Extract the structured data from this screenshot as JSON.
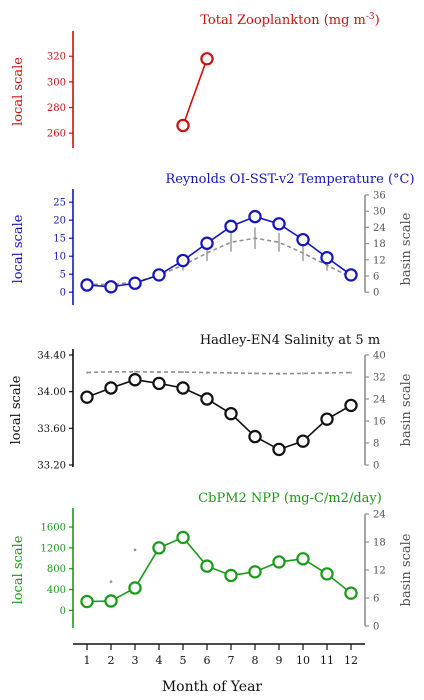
{
  "x_axis": {
    "label": "Month of Year",
    "ticks": [
      "1",
      "2",
      "3",
      "4",
      "5",
      "6",
      "7",
      "8",
      "9",
      "10",
      "11",
      "12"
    ]
  },
  "chart_data": [
    {
      "type": "line",
      "id": "zoo",
      "title": "Total Zooplankton (mg m",
      "title_sup": "-3",
      "title_end": ")",
      "color": "#cc1111",
      "ylabel": "local scale",
      "ylim": [
        250,
        335
      ],
      "yticks": [
        "260",
        "280",
        "300",
        "320"
      ],
      "yticks_v": [
        260,
        280,
        300,
        320
      ],
      "x": [
        5,
        6
      ],
      "values": [
        266,
        318
      ]
    },
    {
      "type": "line",
      "id": "sst",
      "title": "Reynolds OI-SST-v2 Temperature (°C)",
      "color": "#1515c0",
      "ylabel": "local scale",
      "ylim": [
        -3,
        27
      ],
      "yticks": [
        "0",
        "5",
        "10",
        "15",
        "20",
        "25"
      ],
      "yticks_v": [
        0,
        5,
        10,
        15,
        20,
        25
      ],
      "x": [
        1,
        2,
        3,
        4,
        5,
        6,
        7,
        8,
        9,
        10,
        11,
        12
      ],
      "values": [
        2.0,
        1.5,
        2.5,
        4.8,
        8.8,
        13.6,
        18.3,
        21.0,
        19.0,
        14.6,
        9.6,
        4.8
      ],
      "basin": {
        "ylabel": "basin scale",
        "ylim": [
          -4,
          36
        ],
        "yticks": [
          "0",
          "6",
          "12",
          "18",
          "24",
          "30",
          "36"
        ],
        "yticks_v": [
          0,
          6,
          12,
          18,
          24,
          30,
          36
        ],
        "color": "#909090",
        "values": [
          3.0,
          2.8,
          3.8,
          6.2,
          10.0,
          14.5,
          18.5,
          20.0,
          18.5,
          14.5,
          10.0,
          5.5
        ],
        "err": [
          1.0,
          1.0,
          1.2,
          1.5,
          2.0,
          3.0,
          3.5,
          4.0,
          3.5,
          3.0,
          2.0,
          1.5
        ]
      }
    },
    {
      "type": "line",
      "id": "sal",
      "title": "Hadley-EN4 Salinity at 5 m",
      "color": "#111111",
      "ylabel": "local scale",
      "ylim": [
        33.2,
        34.4
      ],
      "yticks": [
        "33.20",
        "33.60",
        "34.00",
        "34.40"
      ],
      "yticks_v": [
        33.2,
        33.6,
        34.0,
        34.4
      ],
      "x": [
        1,
        2,
        3,
        4,
        5,
        6,
        7,
        8,
        9,
        10,
        11,
        12
      ],
      "values": [
        33.94,
        34.04,
        34.13,
        34.09,
        34.04,
        33.92,
        33.76,
        33.51,
        33.37,
        33.46,
        33.7,
        33.85
      ],
      "basin": {
        "ylabel": "basin scale",
        "ylim": [
          0,
          40
        ],
        "yticks": [
          "0",
          "8",
          "16",
          "24",
          "32",
          "40"
        ],
        "yticks_v": [
          0,
          8,
          16,
          24,
          32,
          40
        ],
        "color": "#909090",
        "values": [
          33.6,
          33.9,
          33.9,
          33.8,
          33.8,
          33.6,
          33.5,
          33.3,
          33.2,
          33.3,
          33.5,
          33.6
        ],
        "err": [
          0.4,
          0.4,
          0.4,
          0.4,
          0.4,
          0.4,
          0.4,
          0.4,
          0.4,
          0.4,
          0.4,
          0.4
        ]
      }
    },
    {
      "type": "line",
      "id": "npp",
      "title": "CbPM2 NPP (mg-C/m2/day)",
      "color": "#1a9a1a",
      "ylabel": "local scale",
      "ylim": [
        -300,
        1850
      ],
      "yticks": [
        "0",
        "400",
        "800",
        "1200",
        "1600"
      ],
      "yticks_v": [
        0,
        400,
        800,
        1200,
        1600
      ],
      "x": [
        1,
        2,
        3,
        4,
        5,
        6,
        7,
        8,
        9,
        10,
        11,
        12
      ],
      "values": [
        170,
        180,
        430,
        1200,
        1400,
        850,
        670,
        740,
        930,
        990,
        700,
        330
      ],
      "basin": {
        "ylabel": "basin scale",
        "ylim": [
          0,
          24
        ],
        "yticks": [
          "0",
          "6",
          "12",
          "18",
          "24"
        ],
        "yticks_v": [
          0,
          6,
          12,
          18,
          24
        ],
        "color": "#909090",
        "points_x": [
          2,
          3
        ],
        "points": [
          9.5,
          16.3
        ]
      }
    }
  ]
}
